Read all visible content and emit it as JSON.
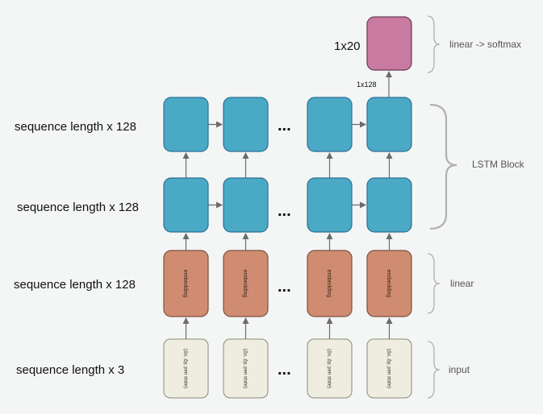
{
  "rows": {
    "lstm_top": "sequence length x 128",
    "lstm_bottom": "sequence length x 128",
    "embedding": "sequence length x 128",
    "input": "sequence length x 3"
  },
  "output": {
    "dim_label": "1x20",
    "hidden_dim_label": "1x128"
  },
  "boxes": {
    "embedding_text": "embedding",
    "input_text": "(Δx, Δy, pen state)"
  },
  "ellipsis": "...",
  "groups": {
    "softmax": "linear -> softmax",
    "lstm": "LSTM Block",
    "linear": "linear",
    "input": "input"
  },
  "colors": {
    "lstm_fill": "#4aaac6",
    "lstm_stroke": "#2c6f96",
    "embedding_fill": "#d08c71",
    "embedding_stroke": "#7a5240",
    "input_fill": "#efeddf",
    "input_stroke": "#8a8a7a",
    "output_fill": "#c97aa1",
    "output_stroke": "#6b3a55",
    "background": "#f4f5f5"
  }
}
